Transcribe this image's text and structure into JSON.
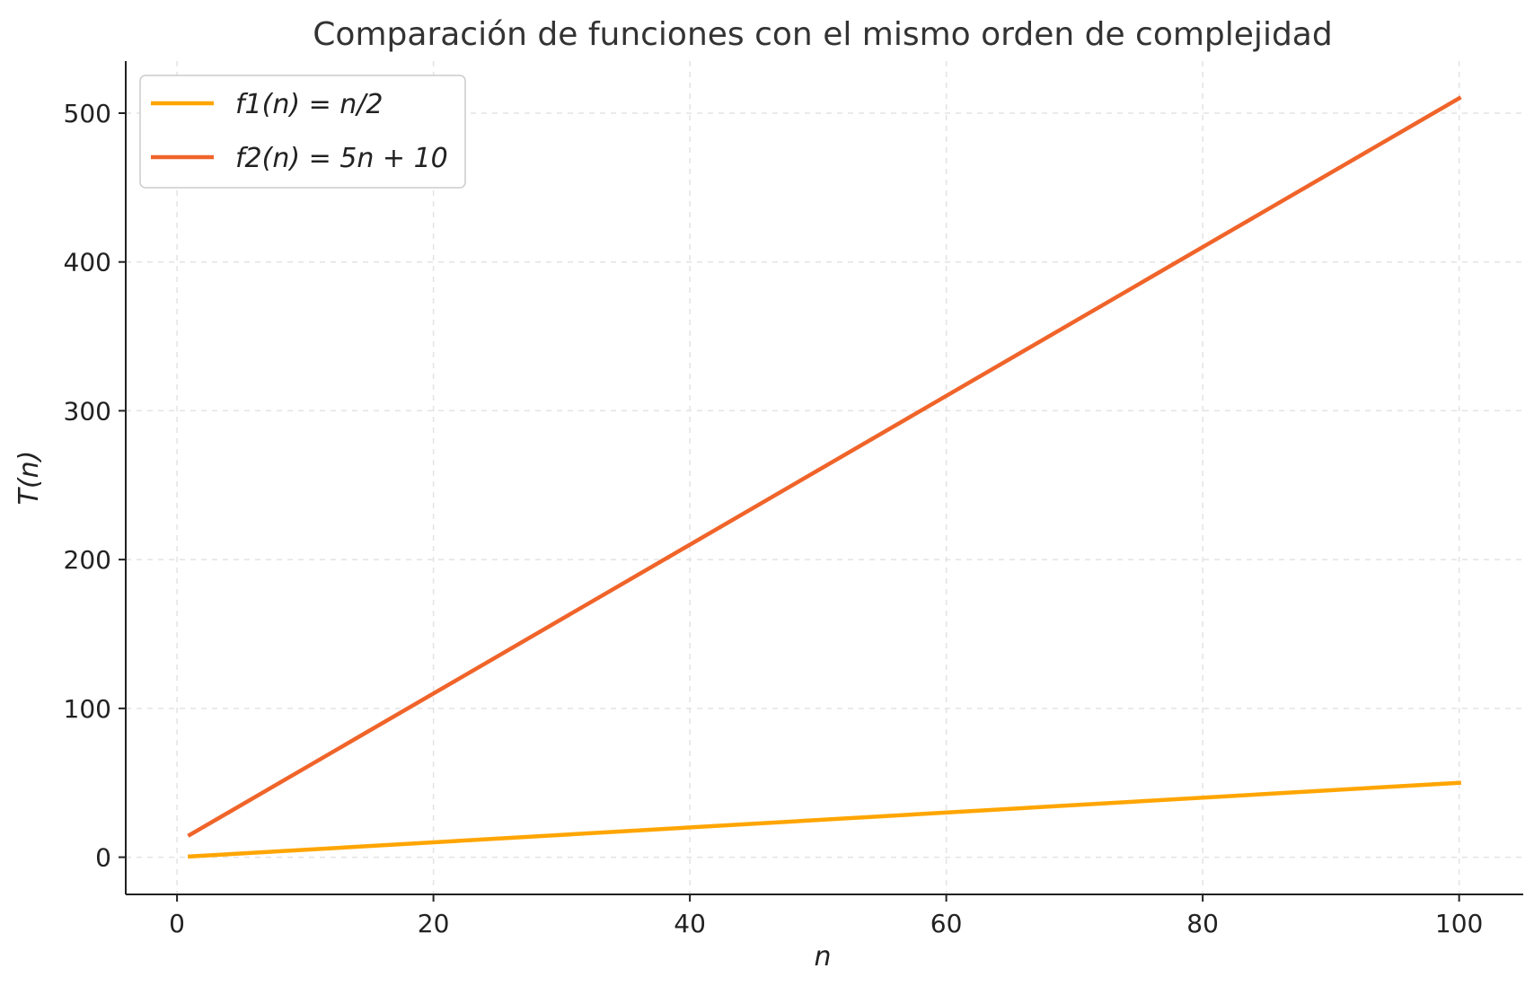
{
  "chart_data": {
    "type": "line",
    "title": "Comparación de funciones con el mismo orden de complejidad",
    "xlabel": "n",
    "ylabel": "T(n)",
    "xlim": [
      -4,
      105
    ],
    "ylim": [
      -25,
      535
    ],
    "xticks": [
      0,
      20,
      40,
      60,
      80,
      100
    ],
    "yticks": [
      0,
      100,
      200,
      300,
      400,
      500
    ],
    "grid": true,
    "legend_position": "top-left",
    "series": [
      {
        "name": "f1(n) = n/2",
        "color": "#FFA500",
        "x": [
          1,
          100
        ],
        "y": [
          0.5,
          50
        ]
      },
      {
        "name": "f2(n) = 5n + 10",
        "color": "#F0642A",
        "x": [
          1,
          100
        ],
        "y": [
          15,
          510
        ]
      }
    ]
  }
}
